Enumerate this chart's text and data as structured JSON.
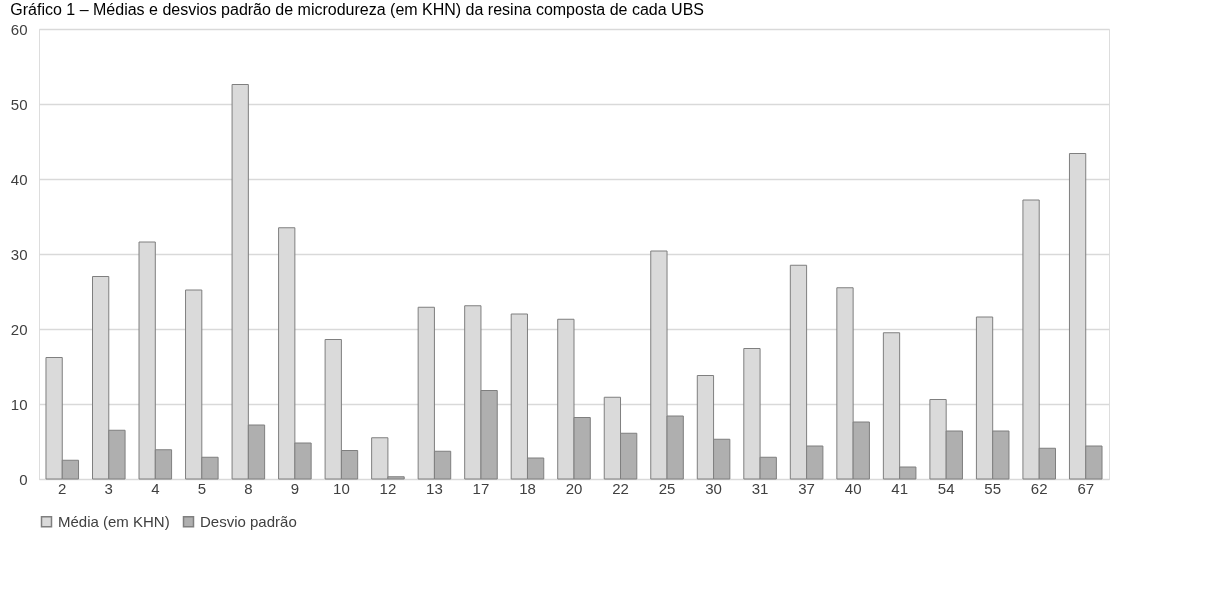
{
  "chart_data": {
    "type": "bar",
    "title": "Gráfico 1 – Médias e desvios padrão de microdureza (em KHN) da resina composta de cada UBS",
    "categories": [
      "2",
      "3",
      "4",
      "5",
      "8",
      "9",
      "10",
      "12",
      "13",
      "17",
      "18",
      "20",
      "22",
      "25",
      "30",
      "31",
      "37",
      "40",
      "41",
      "54",
      "55",
      "62",
      "67"
    ],
    "series": [
      {
        "name": "Média (em KHN)",
        "color": "#dadada",
        "values": [
          16.2,
          27,
          31.6,
          25.2,
          52.6,
          33.5,
          18.6,
          5.5,
          22.9,
          23.1,
          22,
          21.3,
          10.9,
          30.4,
          13.8,
          17.4,
          28.5,
          25.5,
          19.5,
          10.6,
          21.6,
          37.2,
          43.4
        ]
      },
      {
        "name": "Desvio padrão",
        "color": "#afafaf",
        "values": [
          2.5,
          6.5,
          3.9,
          2.9,
          7.2,
          4.8,
          3.8,
          0.3,
          3.7,
          11.8,
          2.8,
          8.2,
          6.1,
          8.4,
          5.3,
          2.9,
          4.4,
          7.6,
          1.6,
          6.4,
          6.4,
          4.1,
          4.4
        ]
      }
    ],
    "ylim": [
      0,
      60
    ],
    "yticks": [
      0,
      10,
      20,
      30,
      40,
      50,
      60
    ],
    "grid": "y",
    "legend": "bottom"
  }
}
